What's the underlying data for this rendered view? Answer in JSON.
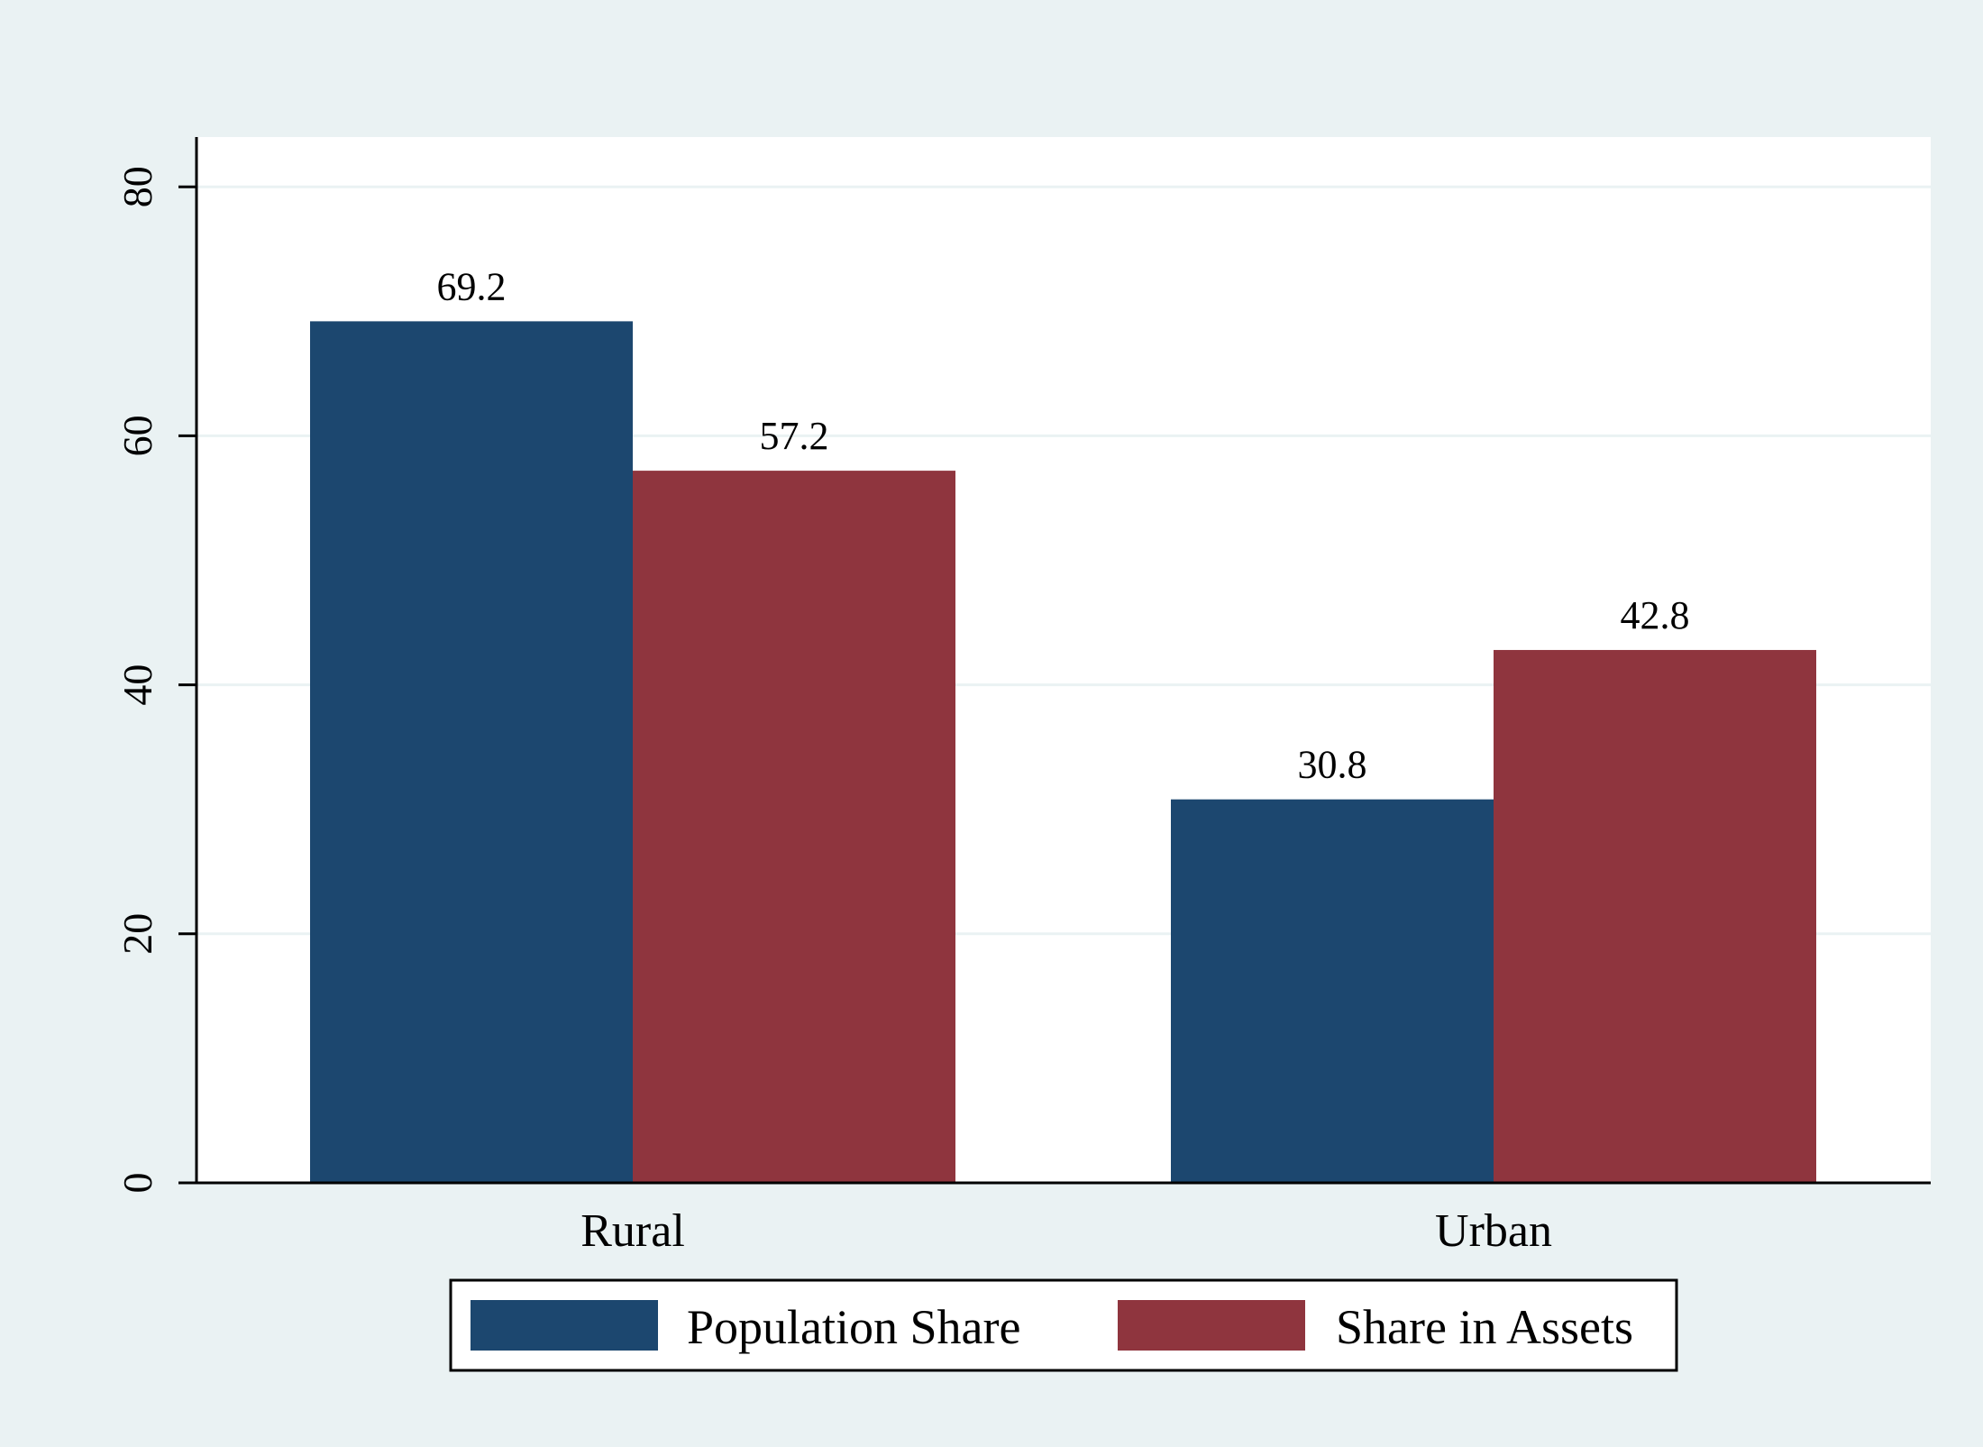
{
  "chart_data": {
    "type": "bar",
    "title": "",
    "xlabel": "",
    "ylabel": "",
    "categories": [
      "Rural",
      "Urban"
    ],
    "series": [
      {
        "name": "Population Share",
        "values": [
          69.2,
          30.8
        ],
        "color": "#1c476f"
      },
      {
        "name": "Share in Assets",
        "values": [
          57.2,
          42.8
        ],
        "color": "#8f353e"
      }
    ],
    "data_labels": [
      [
        "69.2",
        "30.8"
      ],
      [
        "57.2",
        "42.8"
      ]
    ],
    "ylim": [
      0,
      84
    ],
    "yticks": [
      0,
      20,
      40,
      60,
      80
    ],
    "ytick_labels": [
      "0",
      "20",
      "40",
      "60",
      "80"
    ],
    "grid": true,
    "legend_position": "bottom",
    "colors": {
      "background": "#eaf2f3",
      "plot_background": "#ffffff",
      "grid": "#eaf2f3"
    }
  }
}
